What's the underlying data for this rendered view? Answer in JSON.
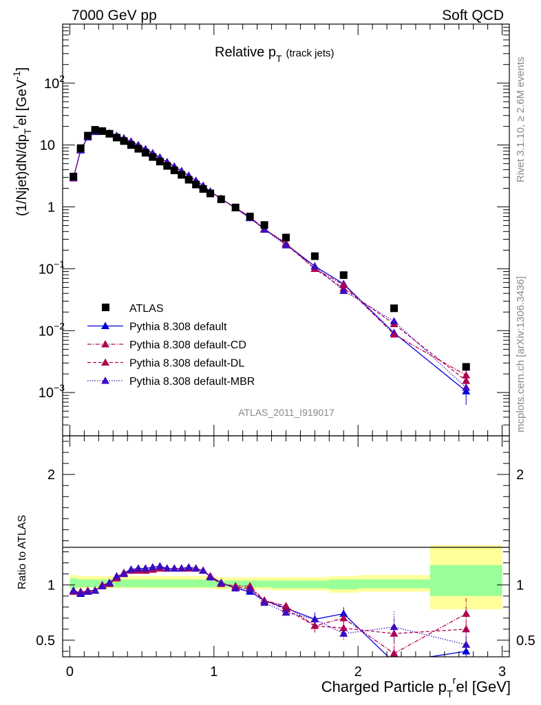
{
  "header": {
    "left": "7000 GeV pp",
    "right": "Soft QCD",
    "side_top": "Rivet 3.1.10, ≥ 2.6M events",
    "side_bottom": "mcplots.cern.ch [arXiv:1306.3436]"
  },
  "chart_data": [
    {
      "type": "scatter",
      "panel": "main",
      "title": "Relative p",
      "title_sub": "T",
      "title_note": "(track jets)",
      "ylabel": "(1/Njet)dN/dp",
      "ylabel_sub": "T",
      "ylabel_sup": "r",
      "ylabel_tail": "el [GeV",
      "ylabel_unit_sup": "-1",
      "ylabel_close": "]",
      "analysis_label": "ATLAS_2011_I919017",
      "yscale": "log",
      "xlim": [
        -0.05,
        3.05
      ],
      "ylim": [
        0.0002,
        900
      ],
      "y_ticks": [
        {
          "v": 0.001,
          "base": "10",
          "exp": "−3"
        },
        {
          "v": 0.01,
          "base": "10",
          "exp": "−2"
        },
        {
          "v": 0.1,
          "base": "10",
          "exp": "−1"
        },
        {
          "v": 1,
          "base": "1",
          "exp": ""
        },
        {
          "v": 10,
          "base": "10",
          "exp": ""
        },
        {
          "v": 100,
          "base": "10",
          "exp": "2"
        }
      ],
      "legend": {
        "placement": "lower-left",
        "entries": [
          {
            "label": "ATLAS",
            "ref": "atlas"
          },
          {
            "label": "Pythia 8.308 default",
            "ref": "default"
          },
          {
            "label": "Pythia 8.308 default-CD",
            "ref": "cd"
          },
          {
            "label": "Pythia 8.308 default-DL",
            "ref": "dl"
          },
          {
            "label": "Pythia 8.308 default-MBR",
            "ref": "mbr"
          }
        ]
      },
      "data": {
        "name": "ATLAS",
        "x": [
          0.025,
          0.075,
          0.125,
          0.175,
          0.225,
          0.275,
          0.325,
          0.375,
          0.425,
          0.475,
          0.525,
          0.575,
          0.625,
          0.675,
          0.725,
          0.775,
          0.825,
          0.875,
          0.925,
          0.975,
          1.05,
          1.15,
          1.25,
          1.35,
          1.5,
          1.7,
          1.9,
          2.25,
          2.75
        ],
        "y": [
          3.1,
          8.9,
          14.2,
          17.6,
          16.8,
          15.2,
          13.2,
          11.6,
          10.0,
          8.7,
          7.5,
          6.4,
          5.4,
          4.6,
          3.9,
          3.3,
          2.75,
          2.3,
          1.95,
          1.65,
          1.33,
          0.98,
          0.7,
          0.51,
          0.32,
          0.16,
          0.079,
          0.023,
          0.0026
        ],
        "color": "#000000"
      },
      "series": [
        {
          "name": "Pythia 8.308 default",
          "ref": "default",
          "color": "#0000dd",
          "dash": "",
          "x": [
            0.025,
            0.075,
            0.125,
            0.175,
            0.225,
            0.275,
            0.325,
            0.375,
            0.425,
            0.475,
            0.525,
            0.575,
            0.625,
            0.675,
            0.725,
            0.775,
            0.825,
            0.875,
            0.925,
            0.975,
            1.05,
            1.15,
            1.25,
            1.35,
            1.5,
            1.7,
            1.9,
            2.25,
            2.75
          ],
          "y": [
            2.95,
            8.2,
            13.3,
            16.3,
            16.6,
            15.5,
            14.1,
            12.9,
            11.4,
            10.0,
            8.6,
            7.4,
            6.3,
            5.3,
            4.5,
            3.8,
            3.2,
            2.65,
            2.2,
            1.78,
            1.36,
            0.95,
            0.66,
            0.44,
            0.25,
            0.11,
            0.057,
            0.0092,
            0.00105
          ]
        },
        {
          "name": "Pythia 8.308 default-CD",
          "ref": "cd",
          "color": "#b0004f",
          "dash": "6,2,1.5,2",
          "x": [
            0.025,
            0.075,
            0.125,
            0.175,
            0.225,
            0.275,
            0.325,
            0.375,
            0.425,
            0.475,
            0.525,
            0.575,
            0.625,
            0.675,
            0.725,
            0.775,
            0.825,
            0.875,
            0.925,
            0.975,
            1.05,
            1.15,
            1.25,
            1.35,
            1.5,
            1.7,
            1.9,
            2.25,
            2.75
          ],
          "y": [
            2.9,
            8.4,
            13.4,
            16.5,
            16.7,
            15.4,
            14.0,
            12.8,
            11.3,
            9.9,
            8.5,
            7.3,
            6.2,
            5.3,
            4.5,
            3.8,
            3.15,
            2.65,
            2.2,
            1.77,
            1.35,
            0.97,
            0.69,
            0.44,
            0.26,
            0.1,
            0.055,
            0.0087,
            0.0019
          ]
        },
        {
          "name": "Pythia 8.308 default-DL",
          "ref": "dl",
          "color": "#b0004f",
          "dash": "5,3",
          "x": [
            0.025,
            0.075,
            0.125,
            0.175,
            0.225,
            0.275,
            0.325,
            0.375,
            0.425,
            0.475,
            0.525,
            0.575,
            0.625,
            0.675,
            0.725,
            0.775,
            0.825,
            0.875,
            0.925,
            0.975,
            1.05,
            1.15,
            1.25,
            1.35,
            1.5,
            1.7,
            1.9,
            2.25,
            2.75
          ],
          "y": [
            2.9,
            8.3,
            13.5,
            16.5,
            16.8,
            15.5,
            14.1,
            12.9,
            11.3,
            9.8,
            8.5,
            7.3,
            6.2,
            5.3,
            4.5,
            3.8,
            3.15,
            2.65,
            2.2,
            1.78,
            1.36,
            0.96,
            0.68,
            0.44,
            0.25,
            0.1,
            0.048,
            0.0128,
            0.00155
          ]
        },
        {
          "name": "Pythia 8.308 default-MBR",
          "ref": "mbr",
          "color": "#3a0dbf",
          "dash": "1.5,2",
          "x": [
            0.025,
            0.075,
            0.125,
            0.175,
            0.225,
            0.275,
            0.325,
            0.375,
            0.425,
            0.475,
            0.525,
            0.575,
            0.625,
            0.675,
            0.725,
            0.775,
            0.825,
            0.875,
            0.925,
            0.975,
            1.05,
            1.15,
            1.25,
            1.35,
            1.5,
            1.7,
            1.9,
            2.25,
            2.75
          ],
          "y": [
            2.95,
            8.3,
            13.4,
            16.4,
            16.7,
            15.5,
            14.2,
            12.8,
            11.4,
            10.0,
            8.6,
            7.4,
            6.3,
            5.3,
            4.5,
            3.8,
            3.2,
            2.65,
            2.2,
            1.77,
            1.36,
            0.95,
            0.67,
            0.43,
            0.24,
            0.11,
            0.044,
            0.0142,
            0.0012
          ]
        }
      ]
    },
    {
      "type": "line",
      "panel": "ratio",
      "xlabel": "Charged Particle p",
      "xlabel_sub": "T",
      "xlabel_sup": "r",
      "xlabel_tail": "el [GeV]",
      "ylabel": "Ratio to ATLAS",
      "xlim": [
        -0.05,
        3.05
      ],
      "ylim": [
        0.35,
        2.35
      ],
      "x_ticks": [
        0,
        1,
        2,
        3
      ],
      "y_ticks": [
        0.5,
        1,
        2
      ],
      "x_tick_labels": [
        "0",
        "1",
        "2",
        "3"
      ],
      "y_tick_labels": [
        "0.5",
        "1",
        "2"
      ],
      "bands": {
        "x_edges": [
          0.0,
          0.05,
          0.1,
          0.15,
          0.2,
          0.25,
          0.3,
          0.35,
          0.4,
          0.45,
          0.5,
          0.55,
          0.6,
          0.65,
          0.7,
          0.75,
          0.8,
          0.85,
          0.9,
          0.95,
          1.0,
          1.1,
          1.2,
          1.3,
          1.4,
          1.6,
          1.8,
          2.0,
          2.5,
          3.0
        ],
        "stat_up": [
          1.06,
          1.05,
          1.05,
          1.05,
          1.05,
          1.05,
          1.05,
          1.05,
          1.05,
          1.05,
          1.05,
          1.05,
          1.05,
          1.05,
          1.05,
          1.05,
          1.05,
          1.05,
          1.05,
          1.05,
          1.04,
          1.04,
          1.04,
          1.04,
          1.04,
          1.04,
          1.05,
          1.05,
          1.18
        ],
        "stat_dn": [
          0.97,
          0.98,
          0.98,
          0.98,
          0.98,
          0.98,
          0.98,
          0.98,
          0.98,
          0.98,
          0.98,
          0.98,
          0.98,
          0.98,
          0.98,
          0.98,
          0.98,
          0.98,
          0.98,
          0.98,
          0.98,
          0.98,
          0.98,
          0.98,
          0.97,
          0.97,
          0.96,
          0.97,
          0.9
        ],
        "tot_up": [
          1.09,
          1.08,
          1.08,
          1.08,
          1.08,
          1.08,
          1.08,
          1.08,
          1.08,
          1.08,
          1.08,
          1.08,
          1.08,
          1.08,
          1.08,
          1.08,
          1.08,
          1.08,
          1.08,
          1.08,
          1.07,
          1.07,
          1.07,
          1.07,
          1.07,
          1.07,
          1.08,
          1.09,
          1.36
        ],
        "tot_dn": [
          0.96,
          0.97,
          0.97,
          0.97,
          0.97,
          0.97,
          0.97,
          0.97,
          0.97,
          0.97,
          0.97,
          0.97,
          0.97,
          0.97,
          0.97,
          0.97,
          0.97,
          0.97,
          0.97,
          0.97,
          0.96,
          0.96,
          0.96,
          0.96,
          0.95,
          0.95,
          0.93,
          0.94,
          0.78
        ],
        "stat_color": "#99ff99",
        "tot_color": "#ffff99"
      },
      "series": [
        {
          "name": "Pythia 8.308 default",
          "ref": "default",
          "y": [
            0.95,
            0.92,
            0.94,
            0.95,
            0.99,
            1.02,
            1.07,
            1.11,
            1.14,
            1.15,
            1.15,
            1.16,
            1.17,
            1.15,
            1.15,
            1.15,
            1.16,
            1.15,
            1.13,
            1.08,
            1.02,
            0.97,
            0.94,
            0.86,
            0.79,
            0.69,
            0.74,
            0.3,
            0.4
          ]
        },
        {
          "name": "Pythia 8.308 default-CD",
          "ref": "cd",
          "y": [
            0.94,
            0.94,
            0.94,
            0.95,
            0.99,
            1.01,
            1.06,
            1.1,
            1.13,
            1.14,
            1.13,
            1.14,
            1.15,
            1.15,
            1.15,
            1.15,
            1.15,
            1.15,
            1.13,
            1.07,
            1.01,
            0.99,
            0.99,
            0.86,
            0.81,
            0.63,
            0.7,
            0.38,
            0.74
          ]
        },
        {
          "name": "Pythia 8.308 default-DL",
          "ref": "dl",
          "y": [
            0.94,
            0.93,
            0.95,
            0.95,
            1.0,
            1.02,
            1.07,
            1.11,
            1.13,
            1.13,
            1.13,
            1.14,
            1.15,
            1.15,
            1.15,
            1.15,
            1.15,
            1.15,
            1.13,
            1.08,
            1.02,
            0.98,
            0.97,
            0.86,
            0.78,
            0.63,
            0.61,
            0.56,
            0.6
          ]
        },
        {
          "name": "Pythia 8.308 default-MBR",
          "ref": "mbr",
          "y": [
            0.95,
            0.93,
            0.94,
            0.95,
            0.99,
            1.02,
            1.08,
            1.1,
            1.14,
            1.15,
            1.15,
            1.16,
            1.17,
            1.15,
            1.15,
            1.15,
            1.16,
            1.15,
            1.13,
            1.07,
            1.02,
            0.97,
            0.96,
            0.84,
            0.75,
            0.69,
            0.56,
            0.62,
            0.46
          ]
        }
      ]
    }
  ]
}
